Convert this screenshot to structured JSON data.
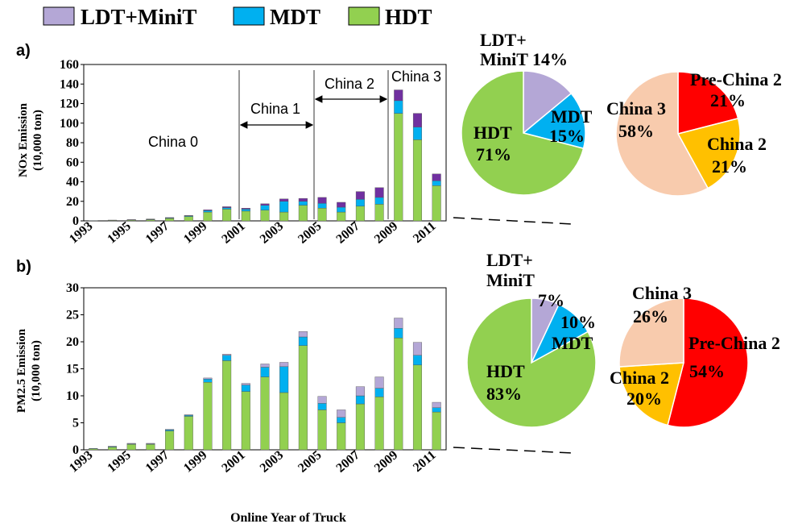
{
  "colors": {
    "ldt": "#b4a7d6",
    "mdt": "#00b0f0",
    "hdt": "#92d050",
    "pre_china2": "#ff0000",
    "china2": "#ffc000",
    "china3": "#f8cbad",
    "nox_top_band": "#7030a0"
  },
  "legend": {
    "ldt": "LDT+MiniT",
    "mdt": "MDT",
    "hdt": "HDT"
  },
  "panel_a": {
    "label": "a)",
    "ylabel_line1": "NOx Emission",
    "ylabel_line2": "(10,000 ton)",
    "era": {
      "china0": "China 0",
      "china1": "China 1",
      "china2": "China 2",
      "china3": "China 3"
    },
    "pie1": {
      "ldt_label": "LDT+",
      "ldt_label2": "MiniT 14%",
      "mdt_label": "MDT",
      "mdt_pct": "15%",
      "hdt_label": "HDT",
      "hdt_pct": "71%"
    },
    "pie2": {
      "pre_label": "Pre-China 2",
      "pre_pct": "21%",
      "c2_label": "China 2",
      "c2_pct": "21%",
      "c3_label": "China 3",
      "c3_pct": "58%"
    }
  },
  "panel_b": {
    "label": "b)",
    "ylabel_line1": "PM2.5 Emission",
    "ylabel_line2": "(10,000 ton)",
    "pie1": {
      "ldt_label": "LDT+",
      "ldt_label2": "MiniT",
      "ldt_pct": "7%",
      "mdt_label": "MDT",
      "mdt_pct": "10%",
      "hdt_label": "HDT",
      "hdt_pct": "83%"
    },
    "pie2": {
      "pre_label": "Pre-China 2",
      "pre_pct": "54%",
      "c2_label": "China 2",
      "c2_pct": "20%",
      "c3_label": "China 3",
      "c3_pct": "26%"
    }
  },
  "xlabel": "Online Year of Truck",
  "chart_data": [
    {
      "type": "bar",
      "stacked": true,
      "categories": [
        "1993",
        "1994",
        "1995",
        "1996",
        "1997",
        "1998",
        "1999",
        "2000",
        "2001",
        "2002",
        "2003",
        "2004",
        "2005",
        "2006",
        "2007",
        "2008",
        "2009",
        "2010",
        "2011"
      ],
      "x_tick_labels": [
        "1993",
        "1995",
        "1997",
        "1999",
        "2001",
        "2003",
        "2005",
        "2007",
        "2009",
        "2011"
      ],
      "ylim": [
        0,
        160
      ],
      "yticks": [
        0,
        20,
        40,
        60,
        80,
        100,
        120,
        140,
        160
      ],
      "series": [
        {
          "name": "HDT",
          "values": [
            0.2,
            0.5,
            0.8,
            1.2,
            2.5,
            4.5,
            9,
            12,
            10,
            11,
            9,
            16,
            13,
            9,
            15,
            17,
            110,
            83,
            36
          ]
        },
        {
          "name": "MDT",
          "values": [
            0.1,
            0.2,
            0.3,
            0.4,
            0.5,
            0.6,
            1.5,
            1.5,
            2,
            5,
            11,
            4,
            5,
            5,
            7,
            7,
            13,
            13,
            5
          ]
        },
        {
          "name": "LDT+MiniT",
          "values": [
            0,
            0.1,
            0.2,
            0.3,
            0.4,
            0.4,
            0.8,
            1,
            1,
            1.5,
            2.5,
            3,
            6,
            5,
            8,
            10,
            11,
            14,
            7
          ]
        }
      ]
    },
    {
      "type": "pie",
      "labels": [
        "LDT+MiniT",
        "MDT",
        "HDT"
      ],
      "values": [
        14,
        15,
        71
      ]
    },
    {
      "type": "pie",
      "labels": [
        "Pre-China 2",
        "China 2",
        "China 3"
      ],
      "values": [
        21,
        21,
        58
      ]
    },
    {
      "type": "bar",
      "stacked": true,
      "categories": [
        "1993",
        "1994",
        "1995",
        "1996",
        "1997",
        "1998",
        "1999",
        "2000",
        "2001",
        "2002",
        "2003",
        "2004",
        "2005",
        "2006",
        "2007",
        "2008",
        "2009",
        "2010",
        "2011"
      ],
      "x_tick_labels": [
        "1993",
        "1995",
        "1997",
        "1999",
        "2001",
        "2003",
        "2005",
        "2007",
        "2009",
        "2011"
      ],
      "ylim": [
        0,
        30
      ],
      "yticks": [
        0,
        5,
        10,
        15,
        20,
        25,
        30
      ],
      "series": [
        {
          "name": "HDT",
          "values": [
            0.2,
            0.5,
            1.0,
            1.0,
            3.5,
            6.2,
            12.5,
            16.5,
            10.8,
            13.5,
            10.6,
            19.3,
            7.4,
            5.0,
            8.5,
            9.8,
            20.7,
            15.7,
            7.0
          ]
        },
        {
          "name": "MDT",
          "values": [
            0.05,
            0.1,
            0.1,
            0.1,
            0.2,
            0.2,
            0.6,
            1.0,
            1.2,
            1.8,
            4.8,
            1.6,
            1.2,
            1.0,
            1.5,
            1.6,
            1.8,
            1.8,
            0.8
          ]
        },
        {
          "name": "LDT+MiniT",
          "values": [
            0,
            0.05,
            0.1,
            0.1,
            0.1,
            0.1,
            0.2,
            0.2,
            0.3,
            0.6,
            0.8,
            1.0,
            1.3,
            1.4,
            1.7,
            2.1,
            1.9,
            2.4,
            1.0
          ]
        }
      ]
    },
    {
      "type": "pie",
      "labels": [
        "LDT+MiniT",
        "MDT",
        "HDT"
      ],
      "values": [
        7,
        10,
        83
      ]
    },
    {
      "type": "pie",
      "labels": [
        "Pre-China 2",
        "China 2",
        "China 3"
      ],
      "values": [
        54,
        20,
        26
      ]
    }
  ]
}
